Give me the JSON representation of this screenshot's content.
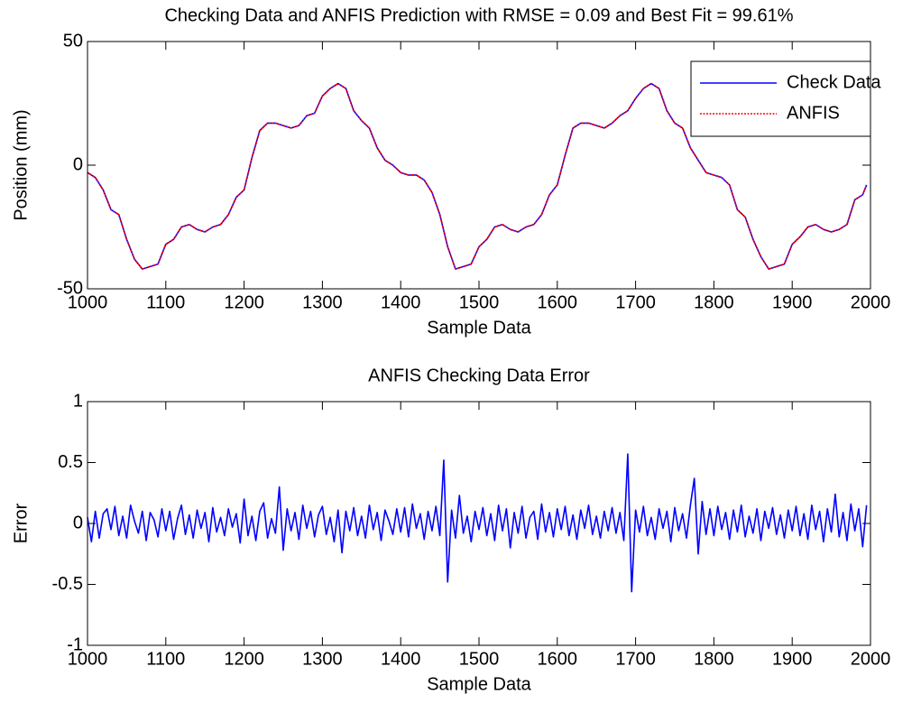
{
  "chart_data": [
    {
      "type": "line",
      "title": "Checking Data and ANFIS Prediction with RMSE = 0.09 and Best Fit = 99.61%",
      "x_label": "Sample Data",
      "y_label": "Position (mm)",
      "x": [
        1000,
        1010,
        1020,
        1030,
        1040,
        1050,
        1060,
        1070,
        1080,
        1090,
        1100,
        1110,
        1120,
        1130,
        1140,
        1150,
        1160,
        1170,
        1180,
        1190,
        1200,
        1210,
        1220,
        1230,
        1240,
        1250,
        1260,
        1270,
        1280,
        1290,
        1300,
        1310,
        1320,
        1330,
        1340,
        1350,
        1360,
        1370,
        1380,
        1390,
        1400,
        1410,
        1420,
        1430,
        1440,
        1450,
        1460,
        1470,
        1480,
        1490,
        1500,
        1510,
        1520,
        1530,
        1540,
        1550,
        1560,
        1570,
        1580,
        1590,
        1600,
        1610,
        1620,
        1630,
        1640,
        1650,
        1660,
        1670,
        1680,
        1690,
        1700,
        1710,
        1720,
        1730,
        1740,
        1750,
        1760,
        1770,
        1780,
        1790,
        1800,
        1810,
        1820,
        1830,
        1840,
        1850,
        1860,
        1870,
        1880,
        1890,
        1900,
        1910,
        1920,
        1930,
        1940,
        1950,
        1960,
        1970,
        1980,
        1990,
        1995
      ],
      "series": [
        {
          "name": "Check Data",
          "color": "#0000ff",
          "style": "solid",
          "values": [
            -3,
            -5,
            -10,
            -18,
            -20,
            -30,
            -38,
            -42,
            -41,
            -40,
            -32,
            -30,
            -25,
            -24,
            -26,
            -27,
            -25,
            -24,
            -20,
            -13,
            -10,
            3,
            14,
            17,
            17,
            16,
            15,
            16,
            20,
            21,
            28,
            31,
            33,
            31,
            22,
            18,
            15,
            7,
            2,
            0,
            -3,
            -4,
            -4,
            -6,
            -11,
            -20,
            -33,
            -42,
            -41,
            -40,
            -33,
            -30,
            -25,
            -24,
            -26,
            -27,
            -25,
            -24,
            -20,
            -12,
            -8,
            4,
            15,
            17,
            17,
            16,
            15,
            17,
            20,
            22,
            27,
            31,
            33,
            31,
            22,
            17,
            15,
            7,
            2,
            -3,
            -4,
            -5,
            -8,
            -18,
            -21,
            -30,
            -37,
            -42,
            -41,
            -40,
            -32,
            -29,
            -25,
            -24,
            -26,
            -27,
            -26,
            -24,
            -14,
            -12,
            -8
          ]
        },
        {
          "name": "ANFIS",
          "color": "#ff0000",
          "style": "dotted",
          "values": [
            -3,
            -5,
            -10,
            -18,
            -20,
            -30,
            -38,
            -42,
            -41,
            -40,
            -32,
            -30,
            -25,
            -24,
            -26,
            -27,
            -25,
            -24,
            -20,
            -13,
            -10,
            3,
            14,
            17,
            17,
            16,
            15,
            16,
            20,
            21,
            28,
            31,
            33,
            31,
            22,
            18,
            15,
            7,
            2,
            0,
            -3,
            -4,
            -4,
            -6,
            -11,
            -20,
            -33,
            -42,
            -41,
            -40,
            -33,
            -30,
            -25,
            -24,
            -26,
            -27,
            -25,
            -24,
            -20,
            -12,
            -8,
            4,
            15,
            17,
            17,
            16,
            15,
            17,
            20,
            22,
            27,
            31,
            33,
            31,
            22,
            17,
            15,
            7,
            2,
            -3,
            -4,
            -5,
            -8,
            -18,
            -21,
            -30,
            -37,
            -42,
            -41,
            -40,
            -32,
            -29,
            -25,
            -24,
            -26,
            -27,
            -26,
            -24,
            -14,
            -12,
            -8
          ]
        }
      ],
      "xlim": [
        1000,
        2000
      ],
      "xticks": [
        1000,
        1100,
        1200,
        1300,
        1400,
        1500,
        1600,
        1700,
        1800,
        1900,
        2000
      ],
      "ylim": [
        -50,
        50
      ],
      "yticks": [
        -50,
        0,
        50
      ],
      "legend": "northeast",
      "grid": false
    },
    {
      "type": "line",
      "title": "ANFIS Checking Data Error",
      "x_label": "Sample Data",
      "y_label": "Error",
      "x": [
        1000,
        1005,
        1010,
        1015,
        1020,
        1025,
        1030,
        1035,
        1040,
        1045,
        1050,
        1055,
        1060,
        1065,
        1070,
        1075,
        1080,
        1085,
        1090,
        1095,
        1100,
        1105,
        1110,
        1115,
        1120,
        1125,
        1130,
        1135,
        1140,
        1145,
        1150,
        1155,
        1160,
        1165,
        1170,
        1175,
        1180,
        1185,
        1190,
        1195,
        1200,
        1205,
        1210,
        1215,
        1220,
        1225,
        1230,
        1235,
        1240,
        1245,
        1250,
        1255,
        1260,
        1265,
        1270,
        1275,
        1280,
        1285,
        1290,
        1295,
        1300,
        1305,
        1310,
        1315,
        1320,
        1325,
        1330,
        1335,
        1340,
        1345,
        1350,
        1355,
        1360,
        1365,
        1370,
        1375,
        1380,
        1385,
        1390,
        1395,
        1400,
        1405,
        1410,
        1415,
        1420,
        1425,
        1430,
        1435,
        1440,
        1445,
        1450,
        1455,
        1460,
        1465,
        1470,
        1475,
        1480,
        1485,
        1490,
        1495,
        1500,
        1505,
        1510,
        1515,
        1520,
        1525,
        1530,
        1535,
        1540,
        1545,
        1550,
        1555,
        1560,
        1565,
        1570,
        1575,
        1580,
        1585,
        1590,
        1595,
        1600,
        1605,
        1610,
        1615,
        1620,
        1625,
        1630,
        1635,
        1640,
        1645,
        1650,
        1655,
        1660,
        1665,
        1670,
        1675,
        1680,
        1685,
        1690,
        1695,
        1700,
        1705,
        1710,
        1715,
        1720,
        1725,
        1730,
        1735,
        1740,
        1745,
        1750,
        1755,
        1760,
        1765,
        1770,
        1775,
        1780,
        1785,
        1790,
        1795,
        1800,
        1805,
        1810,
        1815,
        1820,
        1825,
        1830,
        1835,
        1840,
        1845,
        1850,
        1855,
        1860,
        1865,
        1870,
        1875,
        1880,
        1885,
        1890,
        1895,
        1900,
        1905,
        1910,
        1915,
        1920,
        1925,
        1930,
        1935,
        1940,
        1945,
        1950,
        1955,
        1960,
        1965,
        1970,
        1975,
        1980,
        1985,
        1990,
        1995
      ],
      "series": [
        {
          "name": "Error",
          "color": "#0000ff",
          "style": "solid",
          "values": [
            0.05,
            -0.15,
            0.1,
            -0.12,
            0.08,
            0.12,
            -0.05,
            0.14,
            -0.1,
            0.06,
            -0.12,
            0.15,
            0.02,
            -0.08,
            0.1,
            -0.14,
            0.09,
            0.03,
            -0.11,
            0.12,
            -0.06,
            0.1,
            -0.13,
            0.04,
            0.15,
            -0.09,
            0.07,
            -0.12,
            0.11,
            -0.04,
            0.09,
            -0.15,
            0.13,
            -0.07,
            0.05,
            -0.1,
            0.12,
            -0.03,
            0.08,
            -0.16,
            0.2,
            -0.1,
            0.06,
            -0.14,
            0.1,
            0.17,
            -0.12,
            0.04,
            -0.08,
            0.3,
            -0.22,
            0.12,
            -0.06,
            0.09,
            -0.13,
            0.15,
            -0.04,
            0.1,
            -0.11,
            0.07,
            0.14,
            -0.09,
            0.05,
            -0.15,
            0.11,
            -0.24,
            0.1,
            -0.06,
            0.13,
            -0.1,
            0.06,
            -0.12,
            0.15,
            -0.05,
            0.09,
            -0.14,
            0.11,
            0.02,
            -0.09,
            0.12,
            -0.07,
            0.13,
            -0.11,
            0.16,
            -0.04,
            0.08,
            -0.13,
            0.1,
            -0.06,
            0.14,
            -0.1,
            0.52,
            -0.48,
            0.11,
            -0.12,
            0.23,
            -0.08,
            0.06,
            -0.15,
            0.1,
            -0.05,
            0.13,
            -0.1,
            0.08,
            -0.14,
            0.15,
            -0.06,
            0.12,
            -0.2,
            0.09,
            -0.08,
            0.14,
            -0.12,
            0.05,
            0.1,
            -0.13,
            0.16,
            -0.07,
            0.09,
            -0.11,
            0.12,
            -0.05,
            0.14,
            -0.1,
            0.07,
            -0.13,
            0.11,
            -0.04,
            0.15,
            -0.09,
            0.06,
            -0.12,
            0.1,
            -0.06,
            0.13,
            -0.08,
            0.09,
            -0.14,
            0.57,
            -0.56,
            0.11,
            -0.07,
            0.14,
            -0.1,
            0.05,
            -0.13,
            0.12,
            -0.04,
            0.1,
            -0.15,
            0.13,
            -0.06,
            0.08,
            -0.12,
            0.15,
            0.37,
            -0.25,
            0.18,
            -0.09,
            0.12,
            -0.1,
            0.14,
            -0.05,
            0.09,
            -0.13,
            0.11,
            -0.07,
            0.15,
            -0.11,
            0.06,
            -0.08,
            0.12,
            -0.14,
            0.1,
            -0.04,
            0.13,
            -0.09,
            0.07,
            -0.12,
            0.11,
            -0.06,
            0.14,
            -0.1,
            0.08,
            -0.13,
            0.15,
            -0.05,
            0.1,
            -0.15,
            0.12,
            -0.07,
            0.24,
            -0.11,
            0.09,
            -0.14,
            0.16,
            -0.06,
            0.12,
            -0.19,
            0.15
          ]
        }
      ],
      "xlim": [
        1000,
        2000
      ],
      "xticks": [
        1000,
        1100,
        1200,
        1300,
        1400,
        1500,
        1600,
        1700,
        1800,
        1900,
        2000
      ],
      "ylim": [
        -1,
        1
      ],
      "yticks": [
        -1,
        -0.5,
        0,
        0.5,
        1
      ],
      "grid": false
    }
  ]
}
